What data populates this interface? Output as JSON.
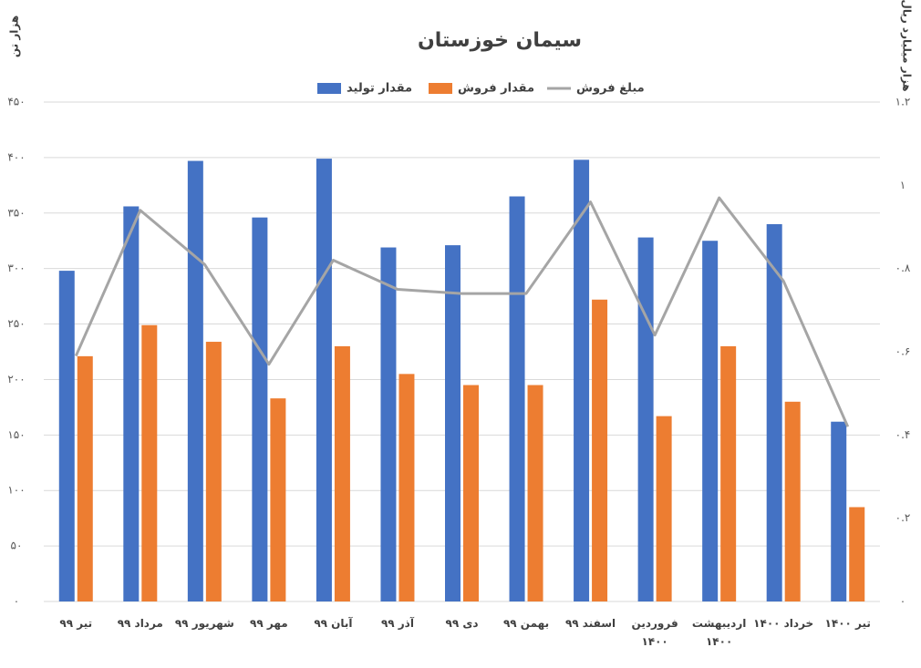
{
  "chart_data": {
    "type": "bar-line",
    "title": "سیمان خوزستان",
    "y_label": "هزار تن",
    "y2_label": "هزار میلیارد ریال",
    "categories": [
      "تیر ۹۹",
      "مرداد ۹۹",
      "شهریور ۹۹",
      "مهر ۹۹",
      "آبان ۹۹",
      "آذر ۹۹",
      "دی ۹۹",
      "بهمن ۹۹",
      "اسفند ۹۹",
      "فروردین ۱۴۰۰",
      "اردیبهشت ۱۴۰۰",
      "خرداد ۱۴۰۰",
      "تیر ۱۴۰۰"
    ],
    "series": [
      {
        "name": "مقدار تولید",
        "color": "#4472c4",
        "type": "bar",
        "values": [
          298,
          356,
          397,
          346,
          399,
          319,
          321,
          365,
          398,
          328,
          325,
          340,
          162
        ]
      },
      {
        "name": "مقدار فروش",
        "color": "#ed7d31",
        "type": "bar",
        "values": [
          221,
          249,
          234,
          183,
          230,
          205,
          195,
          195,
          272,
          167,
          230,
          180,
          85
        ]
      },
      {
        "name": "مبلغ فروش",
        "color": "#a5a5a5",
        "type": "line",
        "axis": "y2",
        "values": [
          0.59,
          0.94,
          0.81,
          0.57,
          0.82,
          0.75,
          0.74,
          0.74,
          0.96,
          0.64,
          0.97,
          0.77,
          0.42
        ]
      }
    ],
    "ylim": [
      0,
      450
    ],
    "yticks": [
      {
        "value": 0,
        "label": "۰"
      },
      {
        "value": 50,
        "label": "۵۰"
      },
      {
        "value": 100,
        "label": "۱۰۰"
      },
      {
        "value": 150,
        "label": "۱۵۰"
      },
      {
        "value": 200,
        "label": "۲۰۰"
      },
      {
        "value": 250,
        "label": "۲۵۰"
      },
      {
        "value": 300,
        "label": "۳۰۰"
      },
      {
        "value": 350,
        "label": "۳۵۰"
      },
      {
        "value": 400,
        "label": "۴۰۰"
      },
      {
        "value": 450,
        "label": "۴۵۰"
      }
    ],
    "y2lim": [
      0,
      1.2
    ],
    "y2ticks": [
      {
        "value": 0,
        "label": "۰"
      },
      {
        "value": 0.2,
        "label": "۰.۲"
      },
      {
        "value": 0.4,
        "label": "۰.۴"
      },
      {
        "value": 0.6,
        "label": "۰.۶"
      },
      {
        "value": 0.8,
        "label": "۰.۸"
      },
      {
        "value": 1,
        "label": "۱"
      },
      {
        "value": 1.2,
        "label": "۱.۲"
      }
    ],
    "grid": true
  }
}
